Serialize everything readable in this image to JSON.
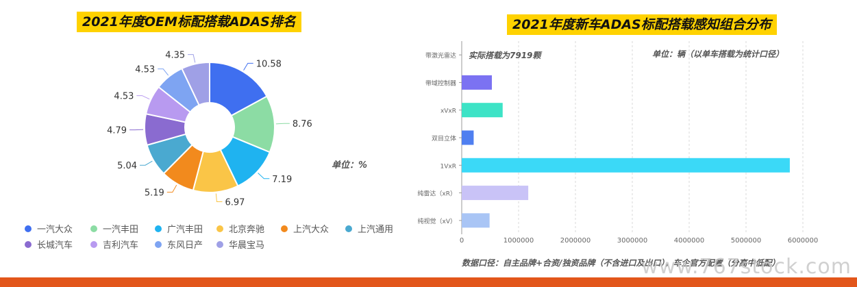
{
  "chart_data": [
    {
      "type": "pie",
      "title": "2021年度OEM标配搭载ADAS排名",
      "unit_label": "单位：%",
      "categories": [
        "一汽大众",
        "一汽丰田",
        "广汽丰田",
        "北京奔驰",
        "上汽大众",
        "上汽通用",
        "长城汽车",
        "吉利汽车",
        "东风日产",
        "华晨宝马"
      ],
      "values": [
        10.58,
        8.76,
        7.19,
        6.97,
        5.19,
        5.04,
        4.79,
        4.53,
        4.53,
        4.35
      ],
      "value_labels": [
        "10.58",
        "8.76",
        "7.19",
        "6.97",
        "5.19",
        "5.04",
        "4.79",
        "4.53",
        "4.53",
        "4.35"
      ],
      "colors": [
        "#3f6ff0",
        "#8cdca4",
        "#1fb3f0",
        "#fac547",
        "#f28a1d",
        "#4aa9d0",
        "#8a6bd0",
        "#b89af0",
        "#7ea4f2",
        "#9fa0e6"
      ],
      "legend_position": "bottom"
    },
    {
      "type": "bar",
      "orientation": "horizontal",
      "title": "2021年度新车ADAS标配搭载感知组合分布",
      "unit_label": "单位：辆（以单车搭载为统计口径）",
      "annotation": "实际搭载为7919颗",
      "footnote": "数据口径：自主品牌+合资/独资品牌（不含进口及出口），车企官方配置（分高中低配）",
      "categories": [
        "带激光雷达",
        "带域控制器",
        "xVxR",
        "双目立体",
        "1VxR",
        "纯雷达（xR）",
        "纯视觉（xV）"
      ],
      "values": [
        0,
        530000,
        720000,
        210000,
        5770000,
        1170000,
        490000
      ],
      "colors": [
        "#cccccc",
        "#7b72f2",
        "#3de3c6",
        "#4f7ff0",
        "#3bd9f7",
        "#c9c3f7",
        "#a9c5f5"
      ],
      "xlim": [
        0,
        6000000
      ],
      "xticks": [
        "0",
        "1000000",
        "2000000",
        "3000000",
        "4000000",
        "5000000",
        "6000000"
      ],
      "grid": true
    }
  ],
  "watermark": "www.767stock.com"
}
